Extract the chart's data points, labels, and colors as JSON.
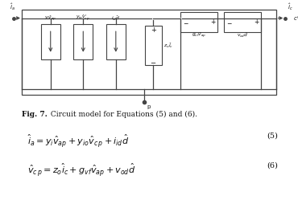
{
  "fig_label": "Fig. 7.",
  "fig_caption": " Circuit model for Equations (5) and (6).",
  "bg_color": "#ffffff",
  "box_color": "#444444"
}
